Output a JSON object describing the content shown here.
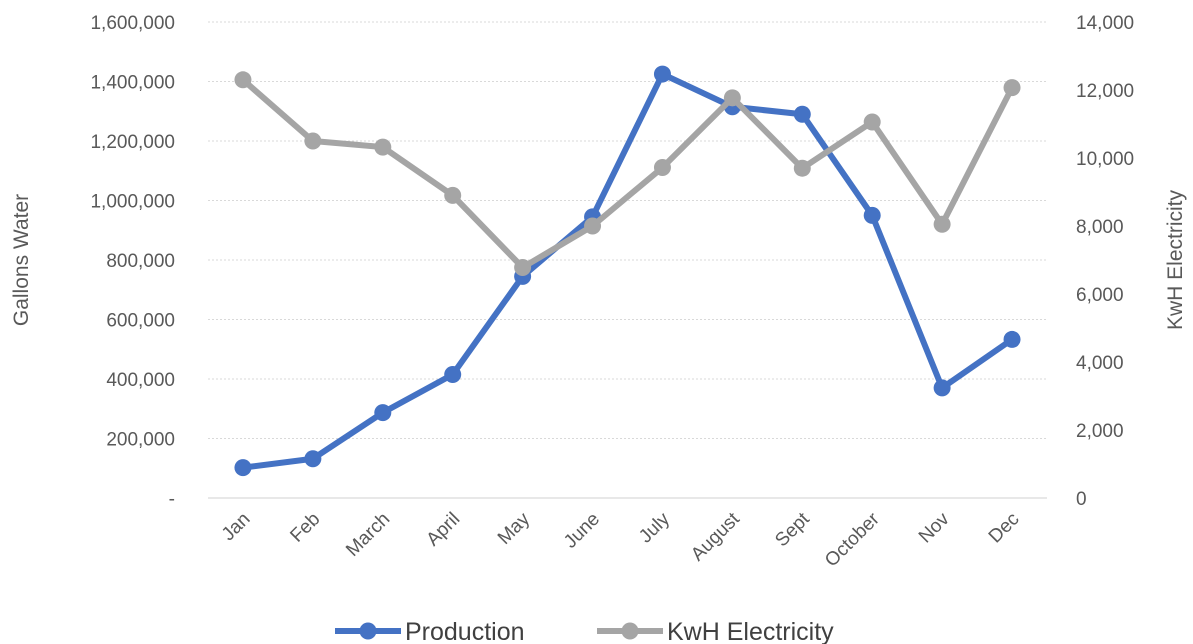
{
  "chart_data": {
    "type": "line",
    "categories": [
      "Jan",
      "Feb",
      "March",
      "April",
      "May",
      "June",
      "July",
      "August",
      "Sept",
      "October",
      "Nov",
      "Dec"
    ],
    "series": [
      {
        "name": "Production",
        "axis": "left",
        "color": "#4472c4",
        "values": [
          102000,
          132000,
          287000,
          415000,
          745000,
          945000,
          1425000,
          1315000,
          1290000,
          950000,
          370000,
          533000
        ]
      },
      {
        "name": "KwH Electricity",
        "axis": "right",
        "color": "#a5a5a5",
        "values": [
          12300,
          10500,
          10320,
          8900,
          6780,
          8000,
          9720,
          11770,
          9700,
          11060,
          8050,
          12070
        ]
      }
    ],
    "ylabel": "Gallons Water",
    "y2label": "KwH Electricity",
    "ylim": [
      0,
      1600000
    ],
    "y2lim": [
      0,
      14000
    ],
    "yticks": [
      "-",
      "200,000",
      "400,000",
      "600,000",
      "800,000",
      "1,000,000",
      "1,200,000",
      "1,400,000",
      "1,600,000"
    ],
    "y2ticks": [
      "0",
      "2,000",
      "4,000",
      "6,000",
      "8,000",
      "10,000",
      "12,000",
      "14,000"
    ],
    "grid": true,
    "legend_position": "bottom"
  }
}
